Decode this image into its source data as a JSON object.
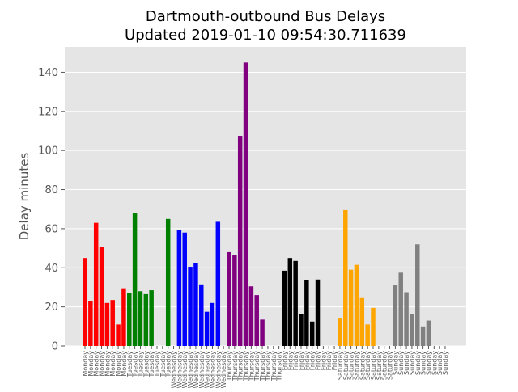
{
  "chart_data": {
    "type": "bar",
    "title_line1": "Dartmouth-outbound Bus Delays",
    "title_line2": "Updated 2019-01-10 09:54:30.711639",
    "xlabel": "",
    "ylabel": "Delay minutes",
    "ylim": [
      0,
      153
    ],
    "yticks": [
      0,
      20,
      40,
      60,
      80,
      100,
      120,
      140
    ],
    "grid": true,
    "legend": "none",
    "colors": {
      "Monday": "#ff0000",
      "Tuesday": "#008000",
      "Wednesday": "#0000ff",
      "Thursday": "#800080",
      "Friday": "#000000",
      "Saturday": "#ffa500",
      "Sunday": "#808080"
    },
    "categories": [
      "Monday",
      "Monday",
      "Monday",
      "Monday",
      "Monday",
      "Monday",
      "Monday",
      "Monday",
      "Tuesday",
      "Tuesday",
      "Tuesday",
      "Tuesday",
      "Tuesday",
      "Tuesday",
      "Tuesday",
      "Tuesday",
      "Wednesday",
      "Wednesday",
      "Wednesday",
      "Wednesday",
      "Wednesday",
      "Wednesday",
      "Wednesday",
      "Wednesday",
      "Wednesday",
      "Wednesday",
      "Thursday",
      "Thursday",
      "Thursday",
      "Thursday",
      "Thursday",
      "Thursday",
      "Thursday",
      "Thursday",
      "Thursday",
      "Thursday",
      "Friday",
      "Friday",
      "Friday",
      "Friday",
      "Friday",
      "Friday",
      "Friday",
      "Friday",
      "Friday",
      "Friday",
      "Saturday",
      "Saturday",
      "Saturday",
      "Saturday",
      "Saturday",
      "Saturday",
      "Saturday",
      "Saturday",
      "Saturday",
      "Saturday",
      "Sunday",
      "Sunday",
      "Sunday",
      "Sunday",
      "Sunday",
      "Sunday",
      "Sunday",
      "Sunday",
      "Sunday",
      "Sunday"
    ],
    "values": [
      45,
      23,
      63,
      50.5,
      22,
      23.5,
      11,
      29.5,
      27,
      68,
      28,
      26.5,
      28.5,
      0,
      0,
      65,
      0,
      59.5,
      58,
      40.5,
      42.5,
      31.5,
      17.5,
      22,
      63.5,
      0,
      48,
      46.5,
      107.5,
      145,
      30.5,
      26,
      13.5,
      0,
      0,
      0,
      38.5,
      45,
      43.5,
      16.5,
      33.5,
      12.5,
      34,
      0,
      0,
      0,
      14,
      69.5,
      39,
      41.5,
      24.5,
      11,
      19.5,
      0,
      0,
      0,
      31,
      37.5,
      27.5,
      16.5,
      52,
      10,
      13,
      0,
      0,
      0
    ]
  }
}
